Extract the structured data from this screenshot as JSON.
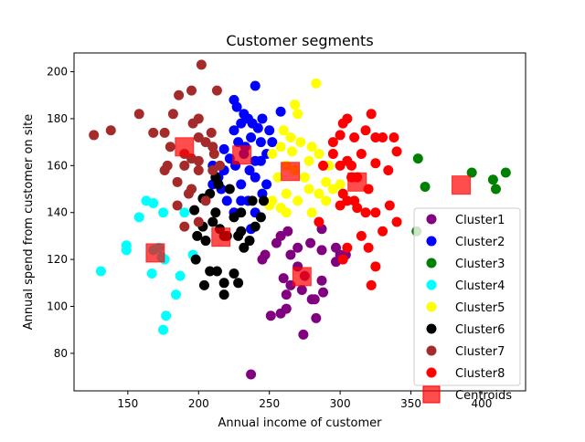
{
  "chart_data": {
    "type": "scatter",
    "title": "Customer segments",
    "xlabel": "Annual income of customer",
    "ylabel": "Annual spend from customer on site",
    "xlim": [
      112,
      431
    ],
    "ylim": [
      64,
      208
    ],
    "xticks": [
      150,
      200,
      250,
      300,
      350,
      400
    ],
    "yticks": [
      80,
      100,
      120,
      140,
      160,
      180,
      200
    ],
    "grid": false,
    "legend": "right",
    "series": [
      {
        "name": "Cluster1",
        "color": "#800080",
        "points": [
          [
            237,
            71
          ],
          [
            274,
            88
          ],
          [
            283,
            95
          ],
          [
            258,
            97
          ],
          [
            262,
            99
          ],
          [
            288,
            106
          ],
          [
            251,
            96
          ],
          [
            245,
            120
          ],
          [
            247,
            122
          ],
          [
            255,
            127
          ],
          [
            258,
            130
          ],
          [
            263,
            132
          ],
          [
            265,
            122
          ],
          [
            270,
            125
          ],
          [
            279,
            127
          ],
          [
            287,
            124
          ],
          [
            297,
            125
          ],
          [
            300,
            122
          ],
          [
            304,
            122
          ],
          [
            297,
            119
          ],
          [
            287,
            133
          ],
          [
            262,
            105
          ],
          [
            265,
            109
          ],
          [
            280,
            103
          ],
          [
            282,
            103
          ],
          [
            270,
            117
          ],
          [
            275,
            113
          ],
          [
            273,
            107
          ],
          [
            260,
            112
          ],
          [
            287,
            111
          ]
        ]
      },
      {
        "name": "Cluster2",
        "color": "#0000ff",
        "points": [
          [
            240,
            194
          ],
          [
            225,
            188
          ],
          [
            227,
            185
          ],
          [
            235,
            180
          ],
          [
            245,
            180
          ],
          [
            250,
            175
          ],
          [
            258,
            183
          ],
          [
            230,
            178
          ],
          [
            232,
            182
          ],
          [
            238,
            178
          ],
          [
            242,
            176
          ],
          [
            237,
            172
          ],
          [
            228,
            170
          ],
          [
            232,
            165
          ],
          [
            226,
            160
          ],
          [
            222,
            163
          ],
          [
            218,
            158
          ],
          [
            214,
            155
          ],
          [
            216,
            150
          ],
          [
            210,
            152
          ],
          [
            220,
            145
          ],
          [
            225,
            140
          ],
          [
            235,
            145
          ],
          [
            240,
            140
          ],
          [
            245,
            148
          ],
          [
            248,
            152
          ],
          [
            240,
            155
          ],
          [
            244,
            162
          ],
          [
            248,
            165
          ],
          [
            252,
            170
          ],
          [
            236,
            158
          ],
          [
            230,
            152
          ],
          [
            230,
            145
          ],
          [
            237,
            133
          ],
          [
            240,
            162
          ],
          [
            244,
            170
          ],
          [
            225,
            175
          ],
          [
            233,
            168
          ],
          [
            218,
            167
          ],
          [
            210,
            160
          ]
        ]
      },
      {
        "name": "Cluster3",
        "color": "#008000",
        "points": [
          [
            355,
            163
          ],
          [
            360,
            151
          ],
          [
            393,
            157
          ],
          [
            408,
            154
          ],
          [
            417,
            157
          ],
          [
            410,
            150
          ],
          [
            354,
            132
          ]
        ]
      },
      {
        "name": "Cluster4",
        "color": "#00ffff",
        "points": [
          [
            131,
            115
          ],
          [
            149,
            124
          ],
          [
            149,
            126
          ],
          [
            158,
            138
          ],
          [
            163,
            145
          ],
          [
            168,
            144
          ],
          [
            175,
            140
          ],
          [
            190,
            140
          ],
          [
            172,
            125
          ],
          [
            174,
            121
          ],
          [
            176,
            120
          ],
          [
            167,
            114
          ],
          [
            187,
            113
          ],
          [
            177,
            96
          ],
          [
            175,
            90
          ],
          [
            184,
            105
          ],
          [
            196,
            122
          ],
          [
            168,
            124
          ]
        ]
      },
      {
        "name": "Cluster5",
        "color": "#ffff00",
        "points": [
          [
            283,
            195
          ],
          [
            268,
            186
          ],
          [
            270,
            182
          ],
          [
            260,
            175
          ],
          [
            265,
            172
          ],
          [
            272,
            170
          ],
          [
            280,
            168
          ],
          [
            278,
            162
          ],
          [
            285,
            165
          ],
          [
            292,
            160
          ],
          [
            290,
            153
          ],
          [
            285,
            148
          ],
          [
            278,
            150
          ],
          [
            270,
            145
          ],
          [
            262,
            148
          ],
          [
            258,
            142
          ],
          [
            252,
            145
          ],
          [
            256,
            155
          ],
          [
            262,
            160
          ],
          [
            268,
            158
          ],
          [
            275,
            155
          ],
          [
            280,
            140
          ],
          [
            290,
            145
          ],
          [
            295,
            150
          ],
          [
            300,
            152
          ],
          [
            258,
            168
          ],
          [
            252,
            165
          ],
          [
            266,
            166
          ],
          [
            262,
            140
          ],
          [
            250,
            143
          ]
        ]
      },
      {
        "name": "Cluster6",
        "color": "#000000",
        "points": [
          [
            197,
            141
          ],
          [
            203,
            146
          ],
          [
            208,
            148
          ],
          [
            212,
            140
          ],
          [
            210,
            136
          ],
          [
            203,
            134
          ],
          [
            199,
            130
          ],
          [
            205,
            128
          ],
          [
            215,
            133
          ],
          [
            220,
            130
          ],
          [
            225,
            138
          ],
          [
            228,
            130
          ],
          [
            230,
            132
          ],
          [
            232,
            125
          ],
          [
            236,
            128
          ],
          [
            240,
            134
          ],
          [
            244,
            138
          ],
          [
            246,
            145
          ],
          [
            238,
            145
          ],
          [
            222,
            150
          ],
          [
            214,
            152
          ],
          [
            212,
            155
          ],
          [
            198,
            120
          ],
          [
            204,
            109
          ],
          [
            208,
            115
          ],
          [
            213,
            115
          ],
          [
            218,
            110
          ],
          [
            218,
            105
          ],
          [
            225,
            114
          ],
          [
            228,
            110
          ],
          [
            230,
            140
          ],
          [
            218,
            130
          ]
        ]
      },
      {
        "name": "Cluster7",
        "color": "#a52a2a",
        "points": [
          [
            126,
            173
          ],
          [
            138,
            175
          ],
          [
            158,
            182
          ],
          [
            168,
            174
          ],
          [
            176,
            174
          ],
          [
            182,
            182
          ],
          [
            186,
            190
          ],
          [
            195,
            192
          ],
          [
            202,
            203
          ],
          [
            213,
            192
          ],
          [
            200,
            180
          ],
          [
            196,
            178
          ],
          [
            200,
            172
          ],
          [
            205,
            170
          ],
          [
            209,
            174
          ],
          [
            210,
            168
          ],
          [
            211,
            165
          ],
          [
            200,
            162
          ],
          [
            195,
            163
          ],
          [
            190,
            165
          ],
          [
            180,
            168
          ],
          [
            176,
            158
          ],
          [
            178,
            160
          ],
          [
            185,
            153
          ],
          [
            195,
            150
          ],
          [
            205,
            145
          ],
          [
            210,
            158
          ],
          [
            215,
            160
          ],
          [
            190,
            160
          ],
          [
            200,
            158
          ],
          [
            185,
            143
          ],
          [
            200,
            136
          ],
          [
            193,
            148
          ],
          [
            190,
            134
          ]
        ]
      },
      {
        "name": "Cluster8",
        "color": "#ff0000",
        "points": [
          [
            288,
            160
          ],
          [
            295,
            165
          ],
          [
            295,
            170
          ],
          [
            300,
            173
          ],
          [
            302,
            178
          ],
          [
            305,
            180
          ],
          [
            310,
            172
          ],
          [
            318,
            175
          ],
          [
            322,
            182
          ],
          [
            325,
            172
          ],
          [
            330,
            172
          ],
          [
            338,
            172
          ],
          [
            340,
            166
          ],
          [
            334,
            158
          ],
          [
            325,
            161
          ],
          [
            320,
            150
          ],
          [
            312,
            155
          ],
          [
            308,
            155
          ],
          [
            300,
            160
          ],
          [
            305,
            162
          ],
          [
            302,
            148
          ],
          [
            300,
            143
          ],
          [
            312,
            142
          ],
          [
            318,
            140
          ],
          [
            305,
            145
          ],
          [
            325,
            140
          ],
          [
            335,
            143
          ],
          [
            340,
            136
          ],
          [
            330,
            132
          ],
          [
            320,
            125
          ],
          [
            315,
            130
          ],
          [
            325,
            117
          ],
          [
            322,
            109
          ],
          [
            305,
            125
          ],
          [
            302,
            120
          ],
          [
            285,
            136
          ],
          [
            308,
            160
          ],
          [
            315,
            165
          ],
          [
            310,
            145
          ]
        ]
      }
    ],
    "centroids": {
      "name": "Centroids",
      "color": "#ff0000",
      "points": [
        [
          190,
          168
        ],
        [
          230.6,
          164.5
        ],
        [
          264.8,
          157.5
        ],
        [
          312,
          153
        ],
        [
          385.5,
          151.7
        ],
        [
          169.4,
          122.8
        ],
        [
          215.8,
          129.5
        ],
        [
          273,
          112.7
        ]
      ]
    }
  }
}
